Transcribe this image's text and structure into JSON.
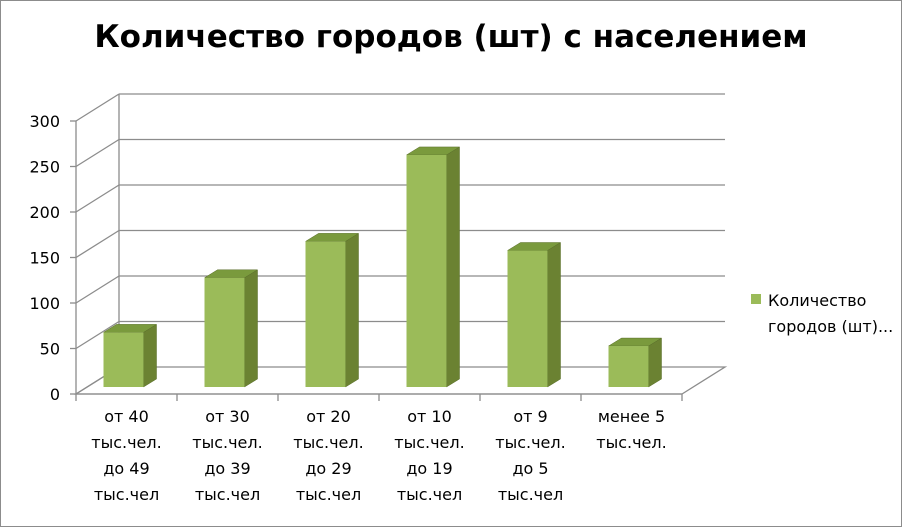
{
  "chart_data": {
    "type": "bar",
    "title": "Количество городов (шт) с населением",
    "categories": [
      [
        "от 40",
        "тыс.чел.",
        "до 49",
        "тыс.чел"
      ],
      [
        "от 30",
        "тыс.чел.",
        "до 39",
        "тыс.чел"
      ],
      [
        "от 20",
        "тыс.чел.",
        "до 29",
        "тыс.чел"
      ],
      [
        "от 10",
        "тыс.чел.",
        "до 19",
        "тыс.чел"
      ],
      [
        "от 9",
        "тыс.чел.",
        "до 5",
        "тыс.чел"
      ],
      [
        "менее 5",
        "тыс.чел."
      ]
    ],
    "series": [
      {
        "name": "Количество городов (шт)...",
        "values": [
          60,
          120,
          160,
          255,
          150,
          45
        ],
        "color": "#9bbb59"
      }
    ],
    "yticks": [
      0,
      50,
      100,
      150,
      200,
      250,
      300
    ],
    "ylim": [
      0,
      300
    ],
    "grid": true,
    "legend_position": "right",
    "style": "3d"
  }
}
